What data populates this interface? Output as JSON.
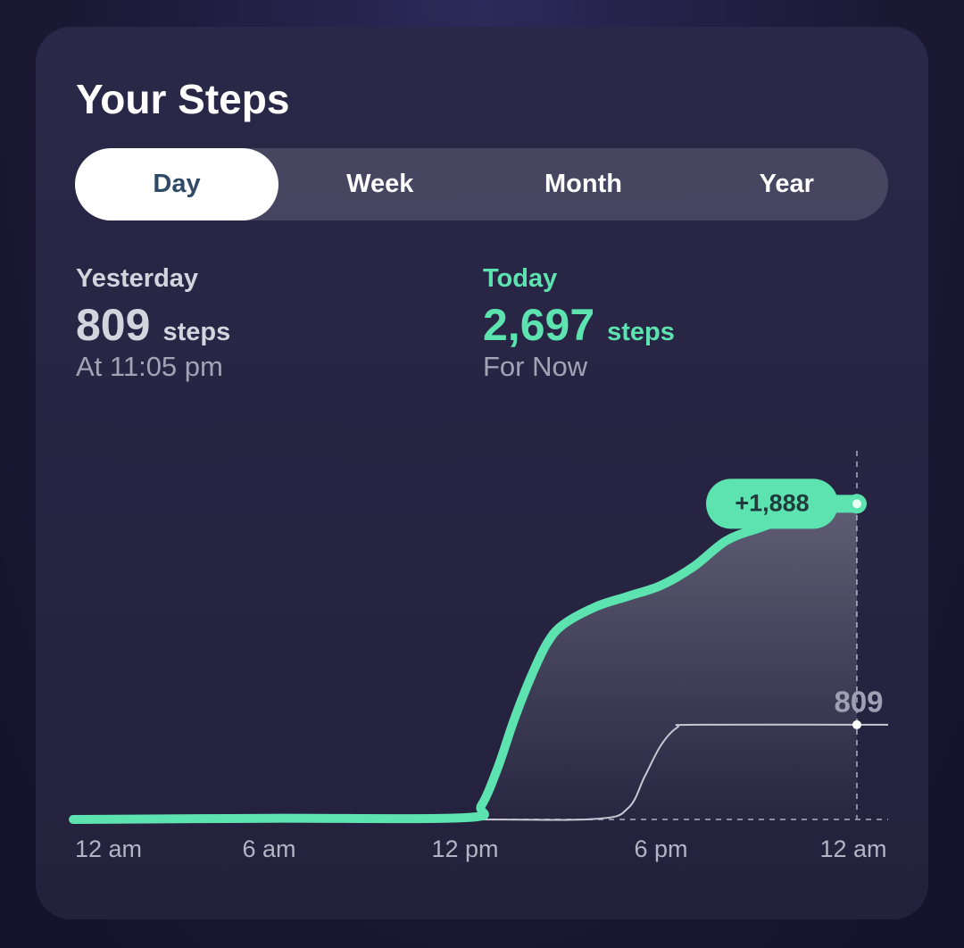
{
  "header": {
    "title": "Your Steps"
  },
  "tabs": [
    "Day",
    "Week",
    "Month",
    "Year"
  ],
  "selected_tab": 0,
  "summary": [
    {
      "label": "Yesterday",
      "value": "809",
      "unit": "steps",
      "note": "At 11:05 pm"
    },
    {
      "label": "Today",
      "value": "2,697",
      "unit": "steps",
      "note": "For Now"
    }
  ],
  "chart_data": {
    "type": "line",
    "xlim": [
      0,
      24
    ],
    "xticks": [
      {
        "value": 0,
        "label": "12 am"
      },
      {
        "value": 6,
        "label": "6 am"
      },
      {
        "value": 12,
        "label": "12 pm"
      },
      {
        "value": 18,
        "label": "6 pm"
      },
      {
        "value": 24,
        "label": "12 am"
      }
    ],
    "ylim": [
      0,
      3150
    ],
    "delta_label": "+1,888",
    "series": [
      {
        "color": "#5de3b0",
        "x": [
          0,
          6,
          12,
          12.5,
          13,
          13.5,
          14,
          14.5,
          15,
          16,
          17,
          18,
          19,
          20,
          21,
          22,
          24
        ],
        "values": [
          0,
          10,
          15,
          120,
          440,
          850,
          1206,
          1500,
          1664,
          1817,
          1908,
          2000,
          2160,
          2382,
          2489,
          2580,
          2697
        ]
      },
      {
        "color": "#c8c8d2",
        "x": [
          0,
          12,
          16,
          17,
          17.5,
          18,
          18.5,
          19,
          24
        ],
        "values": [
          0,
          0,
          5,
          99,
          366,
          634,
          786,
          809,
          809
        ]
      }
    ]
  }
}
